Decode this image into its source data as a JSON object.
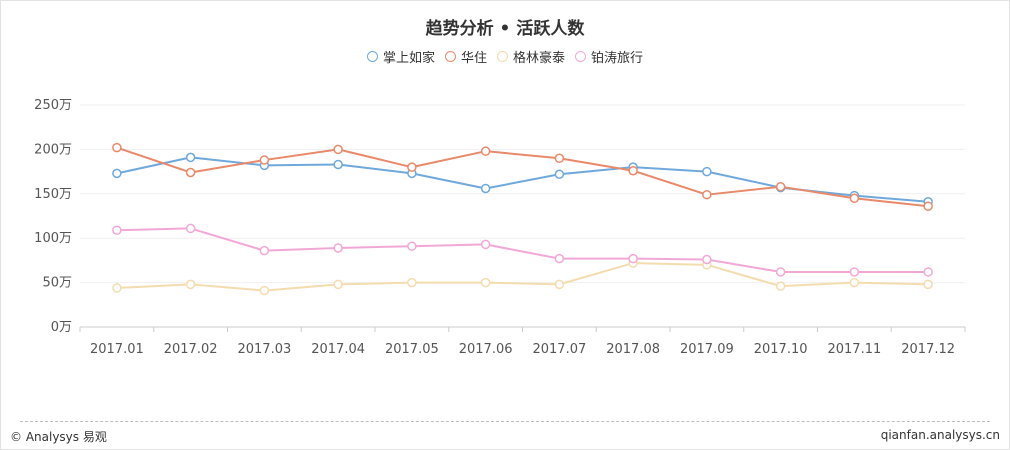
{
  "chart_data": {
    "type": "line",
    "title": "趋势分析 • 活跃人数",
    "categories": [
      "2017.01",
      "2017.02",
      "2017.03",
      "2017.04",
      "2017.05",
      "2017.06",
      "2017.07",
      "2017.08",
      "2017.09",
      "2017.10",
      "2017.11",
      "2017.12"
    ],
    "y_ticks": [
      "0万",
      "50万",
      "100万",
      "150万",
      "200万",
      "250万"
    ],
    "ylim": [
      0,
      250
    ],
    "y_unit": "万",
    "grid": true,
    "legend_position": "top-center",
    "series": [
      {
        "name": "掌上如家",
        "color": "#6fa8dc",
        "values": [
          173,
          191,
          182,
          183,
          173,
          156,
          172,
          180,
          175,
          157,
          148,
          141
        ]
      },
      {
        "name": "华住",
        "color": "#e8896a",
        "values": [
          202,
          174,
          188,
          200,
          180,
          198,
          190,
          176,
          149,
          158,
          145,
          136
        ]
      },
      {
        "name": "格林豪泰",
        "color": "#f3dcae",
        "values": [
          44,
          48,
          41,
          48,
          50,
          50,
          48,
          72,
          70,
          46,
          50,
          48
        ]
      },
      {
        "name": "铂涛旅行",
        "color": "#f2a8d6",
        "values": [
          109,
          111,
          86,
          89,
          91,
          93,
          77,
          77,
          76,
          62,
          62,
          62
        ]
      }
    ]
  },
  "footer": {
    "left": "© Analysys 易观",
    "right": "qianfan.analysys.cn"
  }
}
